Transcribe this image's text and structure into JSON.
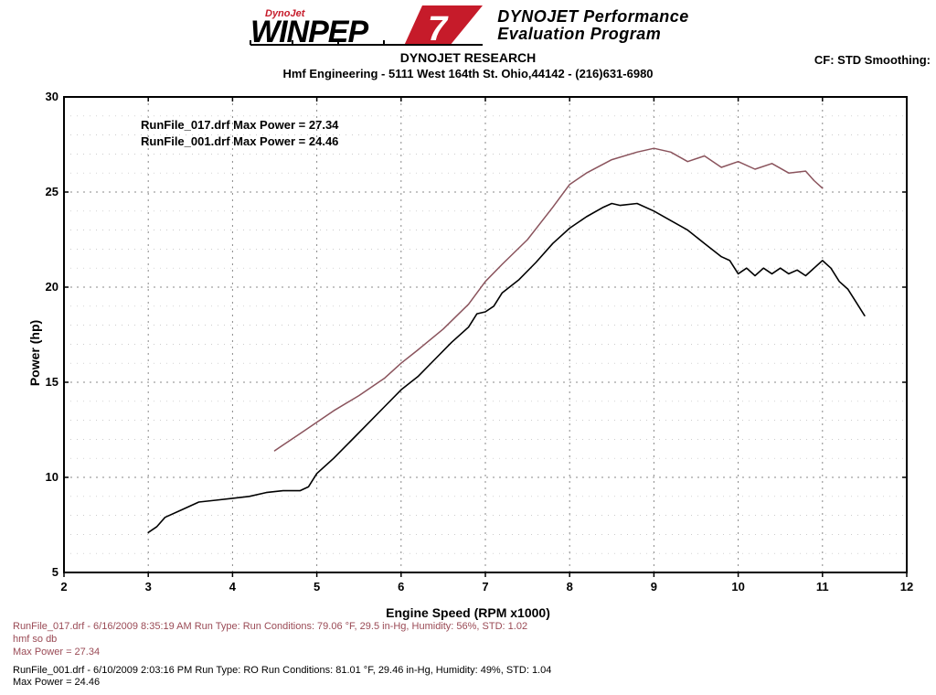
{
  "header": {
    "brand_top": "DynoJet",
    "brand_main": "WINPEP",
    "brand_num": "7",
    "tagline_1": "DYNOJET Performance",
    "tagline_2": "Evaluation Program",
    "research": "DYNOJET RESEARCH",
    "company_line": "Hmf Engineering - 5111 West 164th St. Ohio,44142 - (216)631-6980",
    "cf": "CF: STD  Smoothing:"
  },
  "chart": {
    "type": "line",
    "xlabel": "Engine Speed (RPM x1000)",
    "ylabel": "Power (hp)",
    "xlim": [
      2,
      12
    ],
    "ylim": [
      5,
      30
    ],
    "x_ticks": [
      2,
      3,
      4,
      5,
      6,
      7,
      8,
      9,
      10,
      11,
      12
    ],
    "y_ticks": [
      5,
      10,
      15,
      20,
      25,
      30
    ],
    "background_color": "#ffffff",
    "border_color": "#000000",
    "border_width": 2,
    "grid_major_dash": "2 5",
    "grid_major_color": "#888888",
    "grid_minor_dash": "1 6",
    "grid_minor_color": "#bbbbbb",
    "y_minor_step": 1,
    "tick_fontsize": 13,
    "tick_fontweight": "bold",
    "label_fontsize": 14,
    "legend": {
      "line1": "RunFile_017.drf Max Power = 27.34",
      "line2": "RunFile_001.drf Max Power = 24.46"
    },
    "series": [
      {
        "name": "RunFile_017",
        "color": "#8a535c",
        "width": 1.5,
        "points": [
          [
            4.5,
            11.4
          ],
          [
            4.6,
            11.7
          ],
          [
            4.8,
            12.3
          ],
          [
            5.0,
            12.9
          ],
          [
            5.2,
            13.5
          ],
          [
            5.5,
            14.3
          ],
          [
            5.8,
            15.2
          ],
          [
            6.0,
            16.0
          ],
          [
            6.2,
            16.7
          ],
          [
            6.5,
            17.8
          ],
          [
            6.8,
            19.1
          ],
          [
            7.0,
            20.3
          ],
          [
            7.2,
            21.2
          ],
          [
            7.5,
            22.5
          ],
          [
            7.8,
            24.2
          ],
          [
            8.0,
            25.4
          ],
          [
            8.2,
            26.0
          ],
          [
            8.5,
            26.7
          ],
          [
            8.8,
            27.1
          ],
          [
            9.0,
            27.3
          ],
          [
            9.2,
            27.1
          ],
          [
            9.4,
            26.6
          ],
          [
            9.6,
            26.9
          ],
          [
            9.8,
            26.3
          ],
          [
            10.0,
            26.6
          ],
          [
            10.2,
            26.2
          ],
          [
            10.4,
            26.5
          ],
          [
            10.6,
            26.0
          ],
          [
            10.8,
            26.1
          ],
          [
            10.9,
            25.6
          ],
          [
            11.0,
            25.2
          ]
        ]
      },
      {
        "name": "RunFile_001",
        "color": "#000000",
        "width": 1.6,
        "points": [
          [
            3.0,
            7.1
          ],
          [
            3.1,
            7.4
          ],
          [
            3.2,
            7.9
          ],
          [
            3.4,
            8.3
          ],
          [
            3.6,
            8.7
          ],
          [
            3.8,
            8.8
          ],
          [
            4.0,
            8.9
          ],
          [
            4.2,
            9.0
          ],
          [
            4.4,
            9.2
          ],
          [
            4.6,
            9.3
          ],
          [
            4.8,
            9.3
          ],
          [
            4.9,
            9.5
          ],
          [
            5.0,
            10.2
          ],
          [
            5.2,
            11.0
          ],
          [
            5.4,
            11.9
          ],
          [
            5.6,
            12.8
          ],
          [
            5.8,
            13.7
          ],
          [
            6.0,
            14.6
          ],
          [
            6.2,
            15.3
          ],
          [
            6.4,
            16.2
          ],
          [
            6.6,
            17.1
          ],
          [
            6.8,
            17.9
          ],
          [
            6.9,
            18.6
          ],
          [
            7.0,
            18.7
          ],
          [
            7.1,
            19.0
          ],
          [
            7.2,
            19.7
          ],
          [
            7.4,
            20.4
          ],
          [
            7.6,
            21.3
          ],
          [
            7.8,
            22.3
          ],
          [
            8.0,
            23.1
          ],
          [
            8.2,
            23.7
          ],
          [
            8.4,
            24.2
          ],
          [
            8.5,
            24.4
          ],
          [
            8.6,
            24.3
          ],
          [
            8.8,
            24.4
          ],
          [
            9.0,
            24.0
          ],
          [
            9.2,
            23.5
          ],
          [
            9.4,
            23.0
          ],
          [
            9.6,
            22.3
          ],
          [
            9.8,
            21.6
          ],
          [
            9.9,
            21.4
          ],
          [
            10.0,
            20.7
          ],
          [
            10.1,
            21.0
          ],
          [
            10.2,
            20.6
          ],
          [
            10.3,
            21.0
          ],
          [
            10.4,
            20.7
          ],
          [
            10.5,
            21.0
          ],
          [
            10.6,
            20.7
          ],
          [
            10.7,
            20.9
          ],
          [
            10.8,
            20.6
          ],
          [
            10.9,
            21.0
          ],
          [
            11.0,
            21.4
          ],
          [
            11.1,
            21.0
          ],
          [
            11.2,
            20.3
          ],
          [
            11.3,
            19.9
          ],
          [
            11.4,
            19.2
          ],
          [
            11.5,
            18.5
          ]
        ]
      }
    ]
  },
  "footer": {
    "run017_line1": "RunFile_017.drf - 6/16/2009 8:35:19 AM  Run Type:   Run Conditions: 79.06 °F, 29.5 in-Hg, Humidity:  56%, STD: 1.02",
    "run017_line2": "hmf so db",
    "run017_line3": "Max Power = 27.34",
    "run001_line1": "RunFile_001.drf - 6/10/2009 2:03:16 PM  Run Type: RO  Run Conditions: 81.01 °F, 29.46 in-Hg,  Humidity:  49%, STD: 1.04",
    "run001_line2": "Max Power = 24.46"
  }
}
